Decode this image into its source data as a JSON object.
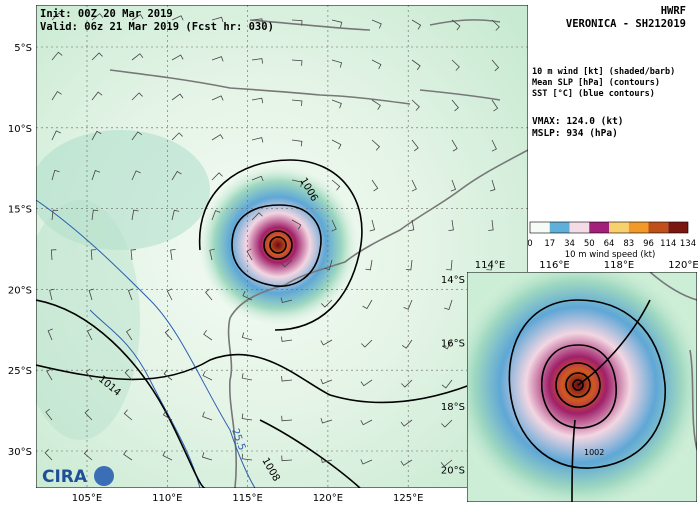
{
  "header": {
    "model": "HWRF",
    "storm": "VERONICA - SH212019",
    "init": "Init:  00Z 20 Mar 2019",
    "valid": "Valid: 06z 21 Mar 2019 (Fcst hr: 030)"
  },
  "legend": {
    "fields": [
      "10 m wind [kt] (shaded/barb)",
      "Mean SLP [hPa] (contours)",
      "SST [°C] (blue contours)"
    ],
    "vmax": "VMAX: 124.0 (kt)",
    "mslp": "MSLP:  934 (hPa)"
  },
  "colorbar": {
    "ticks": [
      "0",
      "17",
      "34",
      "50",
      "64",
      "83",
      "96",
      "114",
      "134"
    ],
    "label": "10 m wind speed (kt)"
  },
  "main_map": {
    "lat_labels": [
      "5°S",
      "10°S",
      "15°S",
      "20°S",
      "25°S",
      "30°S"
    ],
    "lon_labels": [
      "105°E",
      "110°E",
      "115°E",
      "120°E",
      "125°E"
    ],
    "contour_labels": [
      "1006",
      "1014",
      "1008"
    ],
    "sst_labels": [
      "25.5"
    ]
  },
  "inset_map": {
    "lat_labels": [
      "14°S",
      "16°S",
      "18°S",
      "20°S"
    ],
    "lon_labels": [
      "114°E",
      "116°E",
      "118°E",
      "120°E"
    ],
    "contour_labels": [
      "1002"
    ]
  },
  "logo": "CIRA"
}
